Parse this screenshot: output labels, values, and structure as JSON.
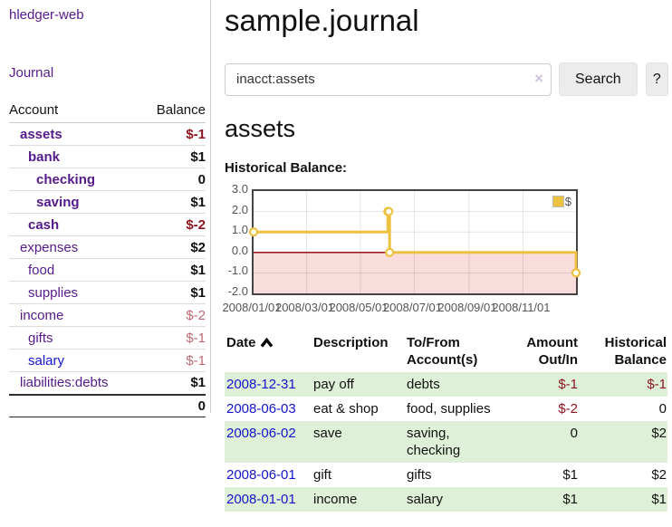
{
  "colors": {
    "accent_purple": "#551a8b",
    "link_blue": "#1414cc",
    "negative": "#8c141e",
    "negative_soft": "#c06a75",
    "row_stripe_green": "#dff0d8",
    "chart_line": "#edc240",
    "chart_negative_fill": "#f9dcdc",
    "chart_zero_line": "#8b0000"
  },
  "sidebar": {
    "brand": "hledger-web",
    "journal_label": "Journal",
    "accounts": {
      "col_account": "Account",
      "col_balance": "Balance",
      "rows": [
        {
          "name": "assets",
          "depth": 1,
          "bold": true,
          "balance": "$-1",
          "balance_style": "neg-strong"
        },
        {
          "name": "bank",
          "depth": 2,
          "bold": true,
          "balance": "$1",
          "balance_style": "pos-strong"
        },
        {
          "name": "checking",
          "depth": 3,
          "bold": true,
          "balance": "0",
          "balance_style": "pos-strong"
        },
        {
          "name": "saving",
          "depth": 3,
          "bold": true,
          "balance": "$1",
          "balance_style": "pos-strong"
        },
        {
          "name": "cash",
          "depth": 2,
          "bold": true,
          "balance": "$-2",
          "balance_style": "neg-strong"
        },
        {
          "name": "expenses",
          "depth": 1,
          "bold": false,
          "balance": "$2",
          "balance_style": "pos-strong"
        },
        {
          "name": "food",
          "depth": 2,
          "bold": false,
          "balance": "$1",
          "balance_style": "pos-strong"
        },
        {
          "name": "supplies",
          "depth": 2,
          "bold": false,
          "balance": "$1",
          "balance_style": "pos-strong"
        },
        {
          "name": "income",
          "depth": 1,
          "bold": false,
          "balance": "$-2",
          "balance_style": "neg-soft"
        },
        {
          "name": "gifts",
          "depth": 2,
          "bold": false,
          "balance": "$-1",
          "balance_style": "neg-soft"
        },
        {
          "name": "salary",
          "depth": 2,
          "bold": false,
          "balance": "$-1",
          "balance_style": "neg-soft",
          "link_blue": true
        },
        {
          "name": "liabilities:debts",
          "depth": 1,
          "bold": false,
          "balance": "$1",
          "balance_style": "pos-strong"
        }
      ],
      "total": "0"
    }
  },
  "main": {
    "title": "sample.journal",
    "search": {
      "value": "inacct:assets",
      "clear_icon": "×",
      "button_label": "Search",
      "help_label": "?"
    },
    "account_heading": "assets",
    "chart_heading": "Historical Balance:"
  },
  "chart_data": {
    "type": "line",
    "steps": true,
    "title": "Historical Balance:",
    "legend": {
      "label": "$",
      "position": "top-right"
    },
    "series": [
      {
        "name": "$",
        "color": "#edc240",
        "points": [
          {
            "date": "2008-01-01",
            "value": 1
          },
          {
            "date": "2008-06-01",
            "value": 2
          },
          {
            "date": "2008-06-02",
            "value": 2
          },
          {
            "date": "2008-06-03",
            "value": 0
          },
          {
            "date": "2008-12-31",
            "value": -1
          }
        ]
      }
    ],
    "x_ticks": [
      "2008/01/01",
      "2008/03/01",
      "2008/05/01",
      "2008/07/01",
      "2008/09/01",
      "2008/11/01"
    ],
    "y_ticks": [
      "3.0",
      "2.0",
      "1.0",
      "0.0",
      "-1.0",
      "-2.0"
    ],
    "ylim": [
      -2,
      3
    ],
    "x_range": [
      "2008-01-01",
      "2008-12-31"
    ],
    "grid": true,
    "negative_region_shaded": true
  },
  "transactions": {
    "headers": {
      "date": "Date",
      "description": "Description",
      "tofrom": "To/From Account(s)",
      "amount": "Amount Out/In",
      "historical": "Historical Balance"
    },
    "rows": [
      {
        "date": "2008-12-31",
        "description": "pay off",
        "accounts": "debts",
        "amount": "$-1",
        "amount_neg": true,
        "historical": "$-1",
        "historical_neg": true
      },
      {
        "date": "2008-06-03",
        "description": "eat & shop",
        "accounts": "food, supplies",
        "amount": "$-2",
        "amount_neg": true,
        "historical": "0",
        "historical_neg": false
      },
      {
        "date": "2008-06-02",
        "description": "save",
        "accounts": "saving, checking",
        "amount": "0",
        "amount_neg": false,
        "historical": "$2",
        "historical_neg": false
      },
      {
        "date": "2008-06-01",
        "description": "gift",
        "accounts": "gifts",
        "amount": "$1",
        "amount_neg": false,
        "historical": "$2",
        "historical_neg": false
      },
      {
        "date": "2008-01-01",
        "description": "income",
        "accounts": "salary",
        "amount": "$1",
        "amount_neg": false,
        "historical": "$1",
        "historical_neg": false
      }
    ]
  }
}
